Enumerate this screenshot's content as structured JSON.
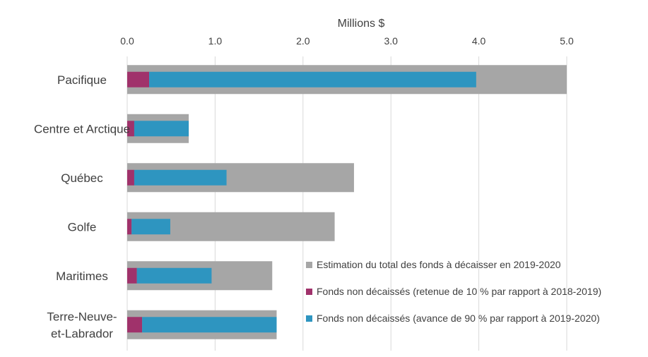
{
  "chart_data": {
    "type": "bar",
    "orientation": "horizontal",
    "stacked_overlay": true,
    "title": "",
    "xlabel": "Millions $",
    "ylabel": "",
    "xlim": [
      0,
      5
    ],
    "ticks": [
      "0.0",
      "1.0",
      "2.0",
      "3.0",
      "4.0",
      "5.0"
    ],
    "tick_values": [
      0,
      1,
      2,
      3,
      4,
      5
    ],
    "grid": true,
    "axis_position": "top",
    "legend_position": "bottom-right",
    "categories": [
      {
        "name": "Pacifique",
        "lines": [
          "Pacifique"
        ]
      },
      {
        "name": "Centre et Arctique",
        "lines": [
          "Centre et Arctique"
        ]
      },
      {
        "name": "Québec",
        "lines": [
          "Québec"
        ]
      },
      {
        "name": "Golfe",
        "lines": [
          "Golfe"
        ]
      },
      {
        "name": "Maritimes",
        "lines": [
          "Maritimes"
        ]
      },
      {
        "name": "Terre-Neuve-et-Labrador",
        "lines": [
          "Terre-Neuve-",
          "et-Labrador"
        ]
      }
    ],
    "series": [
      {
        "name": "Estimation du total des fonds à décaisser en 2019-2020",
        "color": "#a6a6a6",
        "values": [
          5.0,
          0.7,
          2.58,
          2.36,
          1.65,
          1.7
        ]
      },
      {
        "name": "Fonds non décaissés (retenue de 10 % par rapport à 2018-2019)",
        "color": "#a0326b",
        "values": [
          0.25,
          0.08,
          0.08,
          0.05,
          0.11,
          0.17
        ]
      },
      {
        "name": "Fonds non décaissés (avance de 90 % par rapport à 2019-2020)",
        "color": "#2e95c0",
        "values": [
          3.72,
          0.62,
          1.05,
          0.44,
          0.85,
          1.53
        ]
      }
    ]
  }
}
